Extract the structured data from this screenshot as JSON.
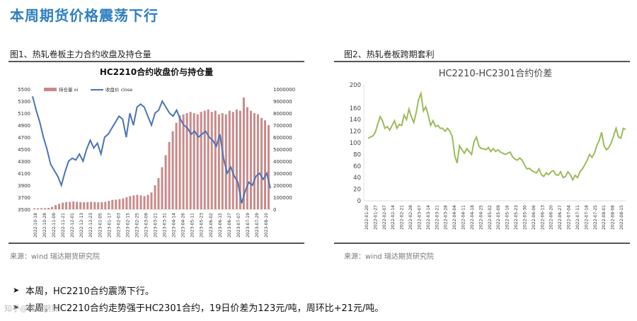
{
  "page": {
    "title": "本周期货价格震荡下行",
    "bullets": [
      "本周，HC2210合约震荡下行。",
      "本周，HC2210合约走势强于HC2301合约，19日价差为123元/吨，周环比+21元/吨。"
    ],
    "watermark": "知乎@瑞达期货"
  },
  "figures": [
    {
      "caption": "图1、热轧卷板主力合约收盘及持仓量",
      "source": "来源：wind   瑞达期货研究院"
    },
    {
      "caption": "图2、热轧卷板跨期套利",
      "source": "来源：wind   瑞达期货研究院"
    }
  ],
  "chart_data": [
    {
      "type": "bar+line",
      "title": "HC2210合约收盘价与持仓量",
      "legend": [
        "持仓量 oi",
        "收盘价 close"
      ],
      "legend_position": "top-left",
      "colors": {
        "bars": "#c98a8a",
        "line": "#4a74b5"
      },
      "x_tick_labels": [
        "2022-10-18",
        "2022-10-28",
        "2022-11-09",
        "2022-11-21",
        "2022-12-01",
        "2022-12-13",
        "2022-12-23",
        "2023-01-05",
        "2023-01-17",
        "2023-02-03",
        "2023-02-15",
        "2023-02-25",
        "2023-03-09",
        "2023-03-21",
        "2023-03-31",
        "2023-04-14",
        "2023-04-26",
        "2023-05-11",
        "2023-05-23",
        "2023-06-02",
        "2023-06-15",
        "2023-06-27",
        "2023-07-07",
        "2023-07-19",
        "2023-07-29",
        "2023-08-10"
      ],
      "ylim_left": [
        3500,
        5500
      ],
      "y_ticks_left": [
        3500,
        3700,
        3900,
        4100,
        4300,
        4500,
        4700,
        4900,
        5100,
        5300,
        5500
      ],
      "ylim_right": [
        0,
        1000000
      ],
      "y_ticks_right": [
        0,
        100000,
        200000,
        300000,
        400000,
        500000,
        600000,
        700000,
        800000,
        900000,
        1000000
      ],
      "close": [
        5380,
        5150,
        4950,
        4700,
        4500,
        4250,
        4150,
        4050,
        3900,
        4120,
        4300,
        4350,
        4320,
        4420,
        4300,
        4500,
        4650,
        4520,
        4600,
        4420,
        4700,
        4750,
        4850,
        4950,
        5050,
        5000,
        4700,
        5100,
        4900,
        5200,
        5250,
        5200,
        5050,
        4900,
        5100,
        5150,
        5300,
        5200,
        5100,
        5050,
        5150,
        5000,
        4900,
        4850,
        4750,
        4800,
        4700,
        4750,
        4800,
        4700,
        4650,
        4550,
        4750,
        4350,
        4100,
        4200,
        4050,
        3950,
        3600,
        3800,
        3950,
        3900,
        4050,
        4100,
        4000,
        4100,
        3850
      ],
      "oi": [
        8000,
        9000,
        9500,
        10000,
        12000,
        20000,
        35000,
        45000,
        55000,
        60000,
        62000,
        65000,
        62000,
        60000,
        58000,
        60000,
        62000,
        60000,
        58000,
        60000,
        62000,
        70000,
        78000,
        80000,
        85000,
        90000,
        100000,
        110000,
        115000,
        120000,
        115000,
        110000,
        120000,
        140000,
        200000,
        260000,
        350000,
        450000,
        560000,
        650000,
        720000,
        780000,
        790000,
        800000,
        810000,
        800000,
        790000,
        810000,
        820000,
        830000,
        810000,
        820000,
        790000,
        800000,
        790000,
        820000,
        810000,
        830000,
        820000,
        930000,
        850000,
        820000,
        800000,
        790000,
        760000,
        740000,
        700000
      ]
    },
    {
      "type": "line",
      "title": "HC2210-HC2301合约价差",
      "colors": {
        "line": "#9bbb59"
      },
      "x_tick_labels": [
        "2022-01-20",
        "2022-01-27",
        "2022-02-07",
        "2022-02-14",
        "2022-02-21",
        "2022-02-28",
        "2022-03-07",
        "2022-03-14",
        "2022-03-21",
        "2022-03-28",
        "2022-04-04",
        "2022-04-11",
        "2022-04-18",
        "2022-04-25",
        "2022-05-02",
        "2022-05-09",
        "2022-05-16",
        "2022-05-23",
        "2022-05-30",
        "2022-06-06",
        "2022-06-13",
        "2022-06-20",
        "2022-06-27",
        "2022-07-04",
        "2022-07-11",
        "2022-07-18",
        "2022-07-25",
        "2022-08-01",
        "2022-08-08",
        "2022-08-15"
      ],
      "ylim": [
        0,
        200
      ],
      "y_ticks": [
        0,
        20,
        40,
        60,
        80,
        100,
        120,
        140,
        160,
        200
      ],
      "spread": [
        108,
        110,
        112,
        118,
        132,
        145,
        138,
        125,
        128,
        122,
        130,
        138,
        125,
        132,
        130,
        148,
        140,
        158,
        145,
        135,
        152,
        175,
        185,
        155,
        162,
        148,
        130,
        138,
        128,
        130,
        125,
        125,
        120,
        125,
        120,
        110,
        78,
        65,
        95,
        88,
        82,
        90,
        85,
        80,
        102,
        110,
        95,
        90,
        90,
        88,
        92,
        85,
        90,
        85,
        88,
        84,
        82,
        80,
        82,
        84,
        76,
        72,
        70,
        74,
        70,
        62,
        55,
        56,
        52,
        50,
        48,
        55,
        45,
        42,
        48,
        45,
        50,
        52,
        45,
        44,
        50,
        40,
        42,
        50,
        45,
        36,
        44,
        40,
        50,
        55,
        62,
        70,
        80,
        75,
        82,
        95,
        104,
        118,
        95,
        88,
        92,
        100,
        112,
        125,
        110,
        108,
        125,
        123
      ]
    }
  ]
}
